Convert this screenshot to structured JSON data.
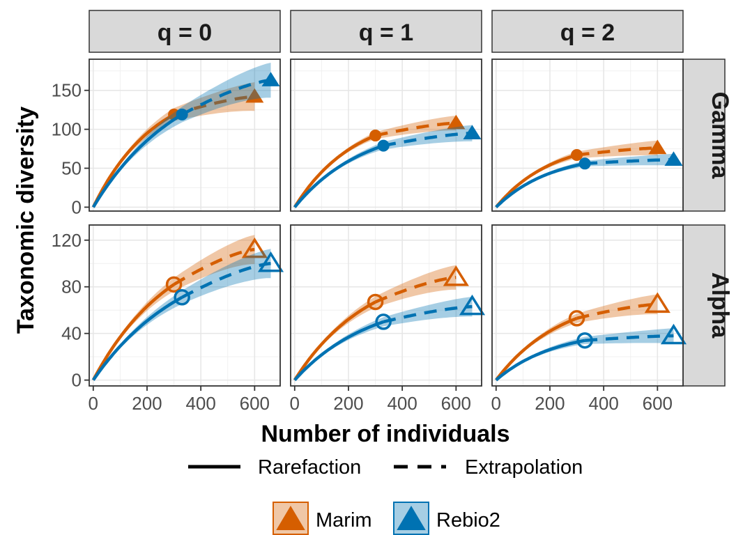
{
  "chart_data": {
    "type": "line",
    "xlabel": "Number of individuals",
    "ylabel": "Taxonomic diversity",
    "columns": [
      "q = 0",
      "q = 1",
      "q = 2"
    ],
    "rows": [
      "Gamma",
      "Alpha"
    ],
    "x_ticks": [
      "0",
      "200",
      "400",
      "600"
    ],
    "x_tick_values": [
      0,
      200,
      400,
      600
    ],
    "xlim": [
      -15,
      695
    ],
    "y_axes": {
      "Gamma": {
        "ylim": [
          -5,
          190
        ],
        "ticks": [
          "0",
          "50",
          "100",
          "150"
        ],
        "tick_values": [
          0,
          50,
          100,
          150
        ]
      },
      "Alpha": {
        "ylim": [
          -5,
          133
        ],
        "ticks": [
          "0",
          "40",
          "80",
          "120"
        ],
        "tick_values": [
          0,
          40,
          80,
          120
        ]
      }
    },
    "grid": true,
    "legend_position": "bottom",
    "linetype_legend": [
      "Rarefaction",
      "Extrapolation"
    ],
    "colors": {
      "Marim": "#d55e00",
      "Rebio2": "#0072b2"
    },
    "series": [
      {
        "name": "Marim",
        "panels": [
          {
            "row": "Gamma",
            "col": "q = 0",
            "observed": [
              300,
              119
            ],
            "extrapolated": [
              600,
              142
            ],
            "ci_half_end": 18,
            "marker": "filled"
          },
          {
            "row": "Gamma",
            "col": "q = 1",
            "observed": [
              300,
              92
            ],
            "extrapolated": [
              600,
              108
            ],
            "ci_half_end": 9,
            "marker": "filled"
          },
          {
            "row": "Gamma",
            "col": "q = 2",
            "observed": [
              300,
              67
            ],
            "extrapolated": [
              600,
              76
            ],
            "ci_half_end": 9,
            "marker": "filled"
          },
          {
            "row": "Alpha",
            "col": "q = 0",
            "observed": [
              300,
              82
            ],
            "extrapolated": [
              600,
              112
            ],
            "ci_half_end": 12,
            "marker": "open"
          },
          {
            "row": "Alpha",
            "col": "q = 1",
            "observed": [
              300,
              67
            ],
            "extrapolated": [
              600,
              88
            ],
            "ci_half_end": 10,
            "marker": "open"
          },
          {
            "row": "Alpha",
            "col": "q = 2",
            "observed": [
              300,
              53
            ],
            "extrapolated": [
              600,
              65
            ],
            "ci_half_end": 8,
            "marker": "open"
          }
        ]
      },
      {
        "name": "Rebio2",
        "panels": [
          {
            "row": "Gamma",
            "col": "q = 0",
            "observed": [
              330,
              119
            ],
            "extrapolated": [
              660,
              163
            ],
            "ci_half_end": 22,
            "marker": "filled"
          },
          {
            "row": "Gamma",
            "col": "q = 1",
            "observed": [
              330,
              79
            ],
            "extrapolated": [
              660,
              95
            ],
            "ci_half_end": 10,
            "marker": "filled"
          },
          {
            "row": "Gamma",
            "col": "q = 2",
            "observed": [
              330,
              56
            ],
            "extrapolated": [
              660,
              61
            ],
            "ci_half_end": 7,
            "marker": "filled"
          },
          {
            "row": "Alpha",
            "col": "q = 0",
            "observed": [
              330,
              71
            ],
            "extrapolated": [
              660,
              100
            ],
            "ci_half_end": 12,
            "marker": "open"
          },
          {
            "row": "Alpha",
            "col": "q = 1",
            "observed": [
              330,
              50
            ],
            "extrapolated": [
              660,
              63
            ],
            "ci_half_end": 8,
            "marker": "open"
          },
          {
            "row": "Alpha",
            "col": "q = 2",
            "observed": [
              330,
              34
            ],
            "extrapolated": [
              660,
              38
            ],
            "ci_half_end": 6,
            "marker": "open"
          }
        ]
      }
    ]
  }
}
